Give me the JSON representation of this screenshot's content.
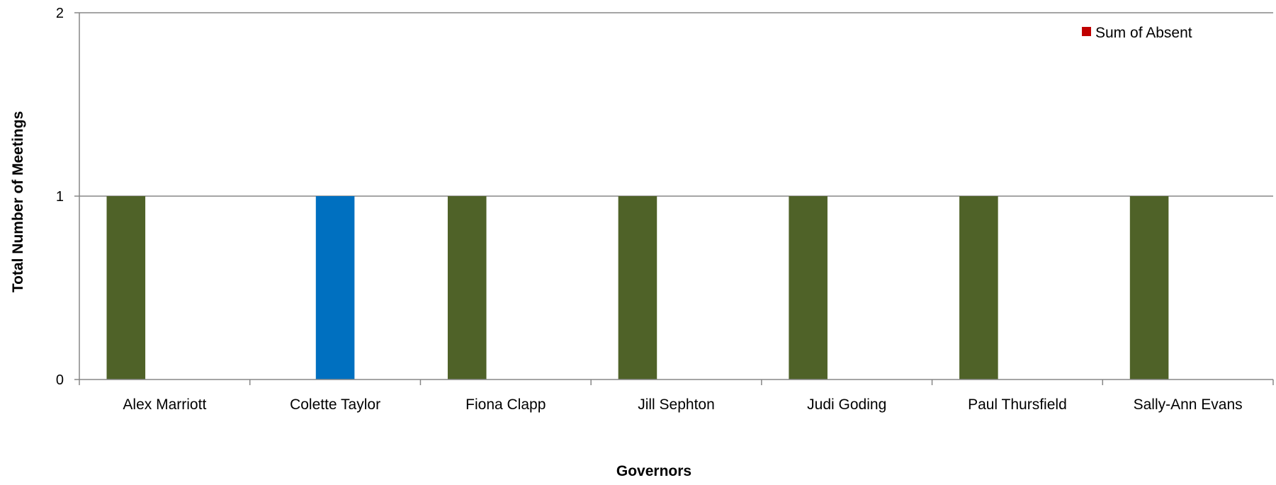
{
  "chart_data": {
    "type": "bar",
    "title": "",
    "xlabel": "Governors",
    "ylabel": "Total Number of Meetings",
    "ylim": [
      0,
      2
    ],
    "yticks": [
      0,
      1,
      2
    ],
    "grid": true,
    "legend": {
      "position": "top-right",
      "entries": [
        "Sum of Absent"
      ]
    },
    "categories": [
      "Alex Marriott",
      "Colette Taylor",
      "Fiona Clapp",
      "Jill Sephton",
      "Judi Goding",
      "Paul Thursfield",
      "Sally-Ann Evans"
    ],
    "series": [
      {
        "name": "",
        "color": "#4F6228",
        "values": [
          1,
          0,
          1,
          1,
          1,
          1,
          1
        ]
      },
      {
        "name": "",
        "color": "#0070C0",
        "values": [
          0,
          1,
          0,
          0,
          0,
          0,
          0
        ]
      },
      {
        "name": "Sum of Absent",
        "color": "#C00000",
        "values": [
          0,
          0,
          0,
          0,
          0,
          0,
          0
        ]
      }
    ]
  }
}
